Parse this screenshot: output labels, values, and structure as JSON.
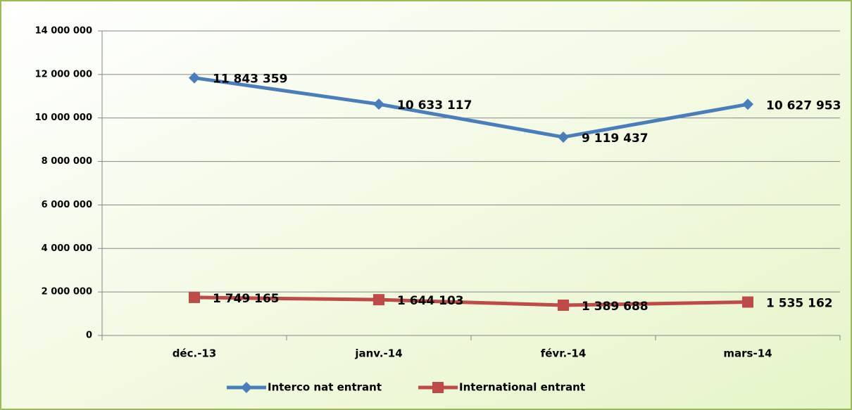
{
  "chart_data": {
    "type": "line",
    "categories": [
      "déc.-13",
      "janv.-14",
      "févr.-14",
      "mars-14"
    ],
    "series": [
      {
        "name": "Interco nat entrant",
        "color": "#4a7ebb",
        "marker": "diamond",
        "values": [
          11843359,
          10633117,
          9119437,
          10627953
        ],
        "value_labels": [
          "11 843 359",
          "10 633 117",
          "9 119 437",
          "10 627 953"
        ]
      },
      {
        "name": "International entrant",
        "color": "#be4b48",
        "marker": "square",
        "values": [
          1749165,
          1644103,
          1389688,
          1535162
        ],
        "value_labels": [
          "1 749 165",
          "1 644 103",
          "1 389 688",
          "1 535 162"
        ]
      }
    ],
    "ylim": [
      0,
      14000000
    ],
    "yticks": [
      0,
      {
        "value": 2000000,
        "label": "2 000 000"
      },
      {
        "value": 4000000,
        "label": "4 000 000"
      },
      {
        "value": 6000000,
        "label": "6 000 000"
      },
      {
        "value": 8000000,
        "label": "8 000 000"
      },
      {
        "value": 10000000,
        "label": "10 000 000"
      },
      {
        "value": 12000000,
        "label": "12 000 000"
      },
      {
        "value": 14000000,
        "label": "14 000 000"
      }
    ],
    "grid": true,
    "legend": "bottom"
  }
}
